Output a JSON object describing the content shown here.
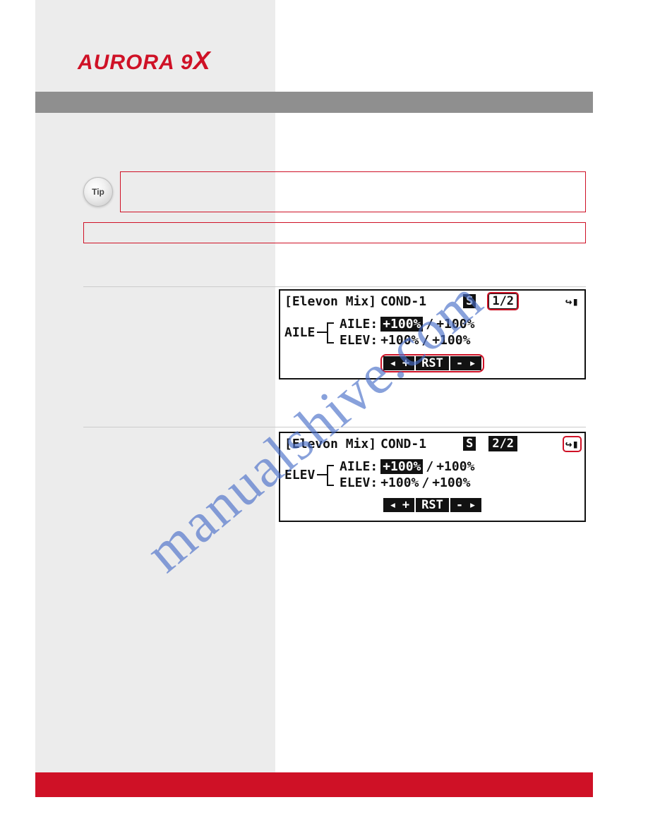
{
  "logo": {
    "text": "AURORA 9",
    "accent": "X"
  },
  "colors": {
    "brand_red": "#cf1126",
    "gray_band": "#8f8f8f",
    "left_bar": "#ececec",
    "lcd_fg": "#121212",
    "watermark": "#4a6fc9"
  },
  "tip": {
    "badge_label": "Tip"
  },
  "watermark_text": "manualshive.com",
  "screens": [
    {
      "title": "[Elevon Mix]",
      "cond": "COND-1",
      "s_icon": "S",
      "page": "1/2",
      "page_style": "normal",
      "page_highlighted": true,
      "exit_highlighted": false,
      "master": "AILE",
      "lines": [
        {
          "label": "AILE:",
          "l": "+100%",
          "l_inv": true,
          "sep": "/",
          "r": "+100%",
          "r_inv": false
        },
        {
          "label": "ELEV:",
          "l": "+100%",
          "l_inv": false,
          "sep": "/",
          "r": "+100%",
          "r_inv": false
        }
      ],
      "btns": {
        "plus": "+",
        "rst": "RST",
        "minus": "-",
        "highlighted": true
      }
    },
    {
      "title": "[Elevon Mix]",
      "cond": "COND-1",
      "s_icon": "S",
      "page": "2/2",
      "page_style": "inverse",
      "page_highlighted": false,
      "exit_highlighted": true,
      "master": "ELEV",
      "lines": [
        {
          "label": "AILE:",
          "l": "+100%",
          "l_inv": true,
          "sep": "/",
          "r": "+100%",
          "r_inv": false
        },
        {
          "label": "ELEV:",
          "l": "+100%",
          "l_inv": false,
          "sep": "/",
          "r": "+100%",
          "r_inv": false
        }
      ],
      "btns": {
        "plus": "+",
        "rst": "RST",
        "minus": "-",
        "highlighted": false
      }
    }
  ]
}
